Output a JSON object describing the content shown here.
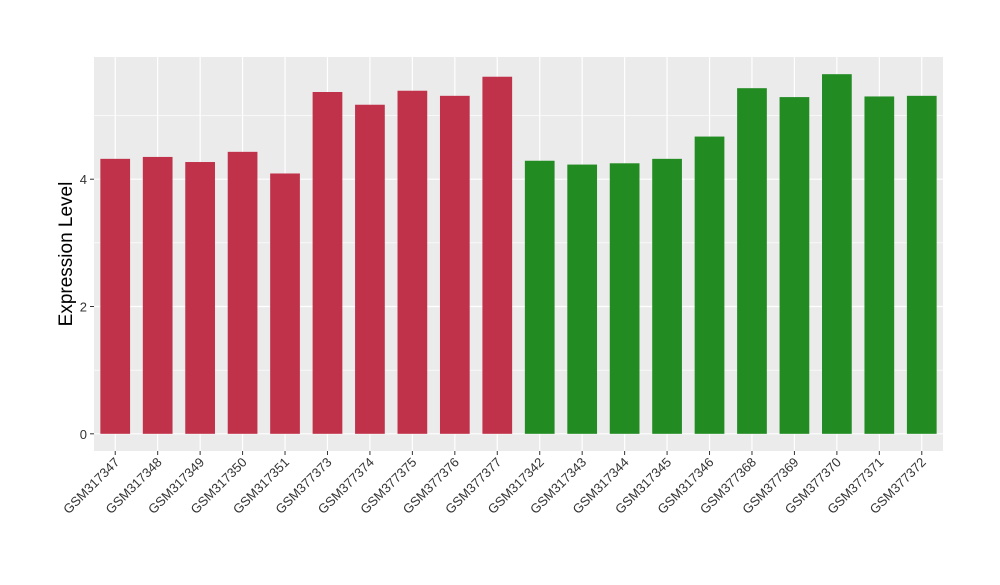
{
  "chart_data": {
    "type": "bar",
    "title": "",
    "xlabel": "",
    "ylabel": "Expression Level",
    "ylim": [
      -0.27,
      5.92
    ],
    "yticks": [
      0,
      2,
      4
    ],
    "grid": true,
    "categories": [
      "GSM317347",
      "GSM317348",
      "GSM317349",
      "GSM317350",
      "GSM317351",
      "GSM377373",
      "GSM377374",
      "GSM377375",
      "GSM377376",
      "GSM377377",
      "GSM317342",
      "GSM317343",
      "GSM317344",
      "GSM317345",
      "GSM317346",
      "GSM377368",
      "GSM377369",
      "GSM377370",
      "GSM377371",
      "GSM377372"
    ],
    "values": [
      4.32,
      4.35,
      4.27,
      4.43,
      4.09,
      5.37,
      5.17,
      5.39,
      5.31,
      5.61,
      4.29,
      4.23,
      4.25,
      4.32,
      4.67,
      5.43,
      5.29,
      5.65,
      5.3,
      5.31
    ],
    "groups": [
      0,
      0,
      0,
      0,
      0,
      0,
      0,
      0,
      0,
      0,
      1,
      1,
      1,
      1,
      1,
      1,
      1,
      1,
      1,
      1
    ],
    "colors": [
      "#c0314a",
      "#228b22"
    ]
  }
}
